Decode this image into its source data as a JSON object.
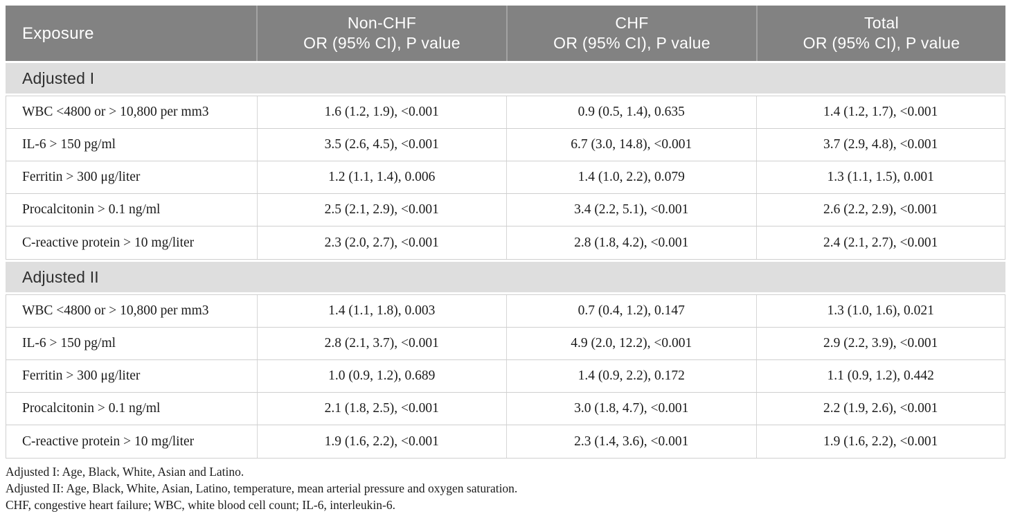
{
  "table": {
    "header": {
      "exposure": "Exposure",
      "non_chf": {
        "title": "Non-CHF",
        "subtitle": "OR (95% CI), P value"
      },
      "chf": {
        "title": "CHF",
        "subtitle": "OR (95% CI), P value"
      },
      "total": {
        "title": "Total",
        "subtitle": "OR (95% CI), P value"
      }
    },
    "sections": [
      {
        "label": "Adjusted I",
        "rows": [
          {
            "exposure": "WBC <4800 or > 10,800 per mm3",
            "non_chf": "1.6 (1.2, 1.9), <0.001",
            "chf": "0.9 (0.5, 1.4), 0.635",
            "total": "1.4 (1.2, 1.7), <0.001"
          },
          {
            "exposure": "IL-6 > 150 pg/ml",
            "non_chf": "3.5 (2.6, 4.5), <0.001",
            "chf": "6.7 (3.0, 14.8), <0.001",
            "total": "3.7 (2.9, 4.8), <0.001"
          },
          {
            "exposure": "Ferritin > 300 μg/liter",
            "non_chf": "1.2 (1.1, 1.4), 0.006",
            "chf": "1.4 (1.0, 2.2), 0.079",
            "total": "1.3 (1.1, 1.5), 0.001"
          },
          {
            "exposure": "Procalcitonin > 0.1 ng/ml",
            "non_chf": "2.5 (2.1, 2.9), <0.001",
            "chf": "3.4 (2.2, 5.1), <0.001",
            "total": "2.6 (2.2, 2.9), <0.001"
          },
          {
            "exposure": "C-reactive protein > 10 mg/liter",
            "non_chf": "2.3 (2.0, 2.7), <0.001",
            "chf": "2.8 (1.8, 4.2), <0.001",
            "total": "2.4 (2.1, 2.7), <0.001"
          }
        ]
      },
      {
        "label": "Adjusted II",
        "rows": [
          {
            "exposure": "WBC <4800 or > 10,800 per mm3",
            "non_chf": "1.4 (1.1, 1.8), 0.003",
            "chf": "0.7 (0.4, 1.2), 0.147",
            "total": "1.3 (1.0, 1.6), 0.021"
          },
          {
            "exposure": "IL-6 > 150 pg/ml",
            "non_chf": "2.8 (2.1, 3.7), <0.001",
            "chf": "4.9 (2.0, 12.2), <0.001",
            "total": "2.9 (2.2, 3.9), <0.001"
          },
          {
            "exposure": "Ferritin > 300 μg/liter",
            "non_chf": "1.0 (0.9, 1.2), 0.689",
            "chf": "1.4 (0.9, 2.2), 0.172",
            "total": "1.1 (0.9, 1.2), 0.442"
          },
          {
            "exposure": "Procalcitonin > 0.1 ng/ml",
            "non_chf": "2.1 (1.8, 2.5), <0.001",
            "chf": "3.0 (1.8, 4.7), <0.001",
            "total": "2.2 (1.9, 2.6), <0.001"
          },
          {
            "exposure": "C-reactive protein > 10 mg/liter",
            "non_chf": "1.9 (1.6, 2.2), <0.001",
            "chf": "2.3 (1.4, 3.6), <0.001",
            "total": "1.9 (1.6, 2.2), <0.001"
          }
        ]
      }
    ]
  },
  "footnotes": [
    "Adjusted I: Age, Black, White, Asian and Latino.",
    "Adjusted II: Age, Black, White, Asian, Latino, temperature, mean arterial pressure and oxygen saturation.",
    "CHF, congestive heart failure; WBC, white blood cell count; IL-6, interleukin-6."
  ],
  "colors": {
    "header_bg": "#828282",
    "section_bg": "#dedede",
    "border": "#cfcfcf",
    "header_text": "#ffffff",
    "body_text": "#1b1b1b"
  }
}
